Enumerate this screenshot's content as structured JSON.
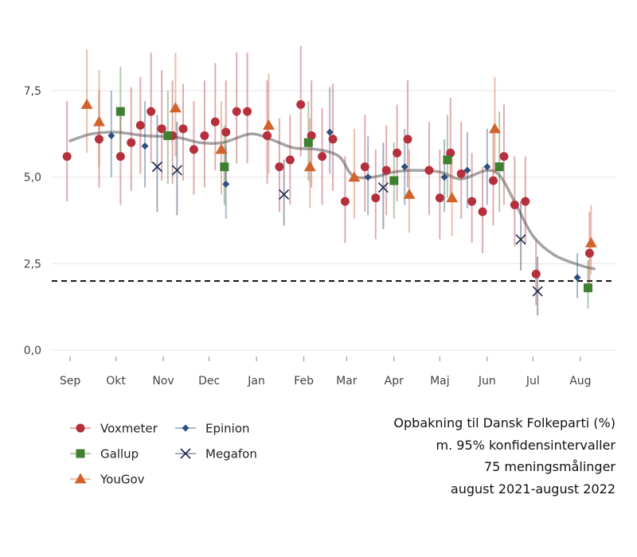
{
  "caption": {
    "line1": "Opbakning til Dansk Folkeparti (%)",
    "line2": "m. 95% konfidensintervaller",
    "line3": "75 meningsmålinger",
    "line4": "august 2021-august 2022"
  },
  "chart_data": {
    "type": "scatter",
    "x_axis": {
      "type": "date",
      "range": [
        "2021-08-20",
        "2022-08-24"
      ],
      "ticks": [
        {
          "date": "2021-09-01",
          "label": "Sep"
        },
        {
          "date": "2021-10-01",
          "label": "Okt"
        },
        {
          "date": "2021-11-01",
          "label": "Nov"
        },
        {
          "date": "2021-12-01",
          "label": "Dec"
        },
        {
          "date": "2022-01-01",
          "label": "Jan"
        },
        {
          "date": "2022-02-01",
          "label": "Feb"
        },
        {
          "date": "2022-03-01",
          "label": "Mar"
        },
        {
          "date": "2022-04-01",
          "label": "Apr"
        },
        {
          "date": "2022-05-01",
          "label": "Maj"
        },
        {
          "date": "2022-06-01",
          "label": "Jun"
        },
        {
          "date": "2022-07-01",
          "label": "Jul"
        },
        {
          "date": "2022-08-01",
          "label": "Aug"
        }
      ]
    },
    "y_axis": {
      "range": [
        0,
        7.8
      ],
      "ticks": [
        {
          "value": 0,
          "label": "0,0"
        },
        {
          "value": 2.5,
          "label": "2,5"
        },
        {
          "value": 5,
          "label": "5,0"
        },
        {
          "value": 7.5,
          "label": "7,5"
        }
      ],
      "grid": true
    },
    "threshold": 2,
    "legend_position": "bottom-left",
    "series": [
      {
        "name": "Voxmeter",
        "color": "#b5303c",
        "marker": "circle",
        "points": [
          {
            "date": "2021-08-30",
            "value": 5.6,
            "lo": 4.3,
            "hi": 7.2
          },
          {
            "date": "2021-09-20",
            "value": 6.1,
            "lo": 4.7,
            "hi": 7.5
          },
          {
            "date": "2021-10-04",
            "value": 5.6,
            "lo": 4.2,
            "hi": 7.0
          },
          {
            "date": "2021-10-11",
            "value": 6.0,
            "lo": 4.6,
            "hi": 7.6
          },
          {
            "date": "2021-10-17",
            "value": 6.5,
            "lo": 5.1,
            "hi": 7.9
          },
          {
            "date": "2021-10-24",
            "value": 6.9,
            "lo": 5.4,
            "hi": 8.6
          },
          {
            "date": "2021-10-31",
            "value": 6.4,
            "lo": 4.9,
            "hi": 8.1
          },
          {
            "date": "2021-11-07",
            "value": 6.2,
            "lo": 4.8,
            "hi": 7.8
          },
          {
            "date": "2021-11-14",
            "value": 6.4,
            "lo": 4.9,
            "hi": 7.7
          },
          {
            "date": "2021-11-21",
            "value": 5.8,
            "lo": 4.5,
            "hi": 7.2
          },
          {
            "date": "2021-11-28",
            "value": 6.2,
            "lo": 4.7,
            "hi": 7.8
          },
          {
            "date": "2021-12-05",
            "value": 6.6,
            "lo": 5.2,
            "hi": 8.3
          },
          {
            "date": "2021-12-12",
            "value": 6.3,
            "lo": 4.9,
            "hi": 7.8
          },
          {
            "date": "2021-12-19",
            "value": 6.9,
            "lo": 5.4,
            "hi": 8.6
          },
          {
            "date": "2021-12-26",
            "value": 6.9,
            "lo": 5.4,
            "hi": 8.6
          },
          {
            "date": "2022-01-08",
            "value": 6.2,
            "lo": 4.8,
            "hi": 7.8
          },
          {
            "date": "2022-01-16",
            "value": 5.3,
            "lo": 4.0,
            "hi": 6.7
          },
          {
            "date": "2022-01-23",
            "value": 5.5,
            "lo": 4.2,
            "hi": 6.8
          },
          {
            "date": "2022-01-30",
            "value": 7.1,
            "lo": 5.6,
            "hi": 8.8
          },
          {
            "date": "2022-02-06",
            "value": 6.2,
            "lo": 4.7,
            "hi": 7.8
          },
          {
            "date": "2022-02-13",
            "value": 5.6,
            "lo": 4.2,
            "hi": 7.0
          },
          {
            "date": "2022-02-20",
            "value": 6.1,
            "lo": 4.6,
            "hi": 7.7
          },
          {
            "date": "2022-02-28",
            "value": 4.3,
            "lo": 3.1,
            "hi": 5.6
          },
          {
            "date": "2022-03-13",
            "value": 5.3,
            "lo": 4.0,
            "hi": 6.8
          },
          {
            "date": "2022-03-20",
            "value": 4.4,
            "lo": 3.2,
            "hi": 5.8
          },
          {
            "date": "2022-03-27",
            "value": 5.2,
            "lo": 3.9,
            "hi": 6.5
          },
          {
            "date": "2022-04-03",
            "value": 5.7,
            "lo": 4.3,
            "hi": 7.1
          },
          {
            "date": "2022-04-10",
            "value": 6.1,
            "lo": 4.7,
            "hi": 7.8
          },
          {
            "date": "2022-04-24",
            "value": 5.2,
            "lo": 3.9,
            "hi": 6.6
          },
          {
            "date": "2022-05-01",
            "value": 4.4,
            "lo": 3.2,
            "hi": 5.8
          },
          {
            "date": "2022-05-08",
            "value": 5.7,
            "lo": 4.3,
            "hi": 7.3
          },
          {
            "date": "2022-05-15",
            "value": 5.1,
            "lo": 3.8,
            "hi": 6.6
          },
          {
            "date": "2022-05-22",
            "value": 4.3,
            "lo": 3.1,
            "hi": 5.7
          },
          {
            "date": "2022-05-29",
            "value": 4.0,
            "lo": 2.8,
            "hi": 5.3
          },
          {
            "date": "2022-06-05",
            "value": 4.9,
            "lo": 3.6,
            "hi": 6.3
          },
          {
            "date": "2022-06-12",
            "value": 5.6,
            "lo": 4.2,
            "hi": 7.1
          },
          {
            "date": "2022-06-19",
            "value": 4.2,
            "lo": 3.0,
            "hi": 5.6
          },
          {
            "date": "2022-06-26",
            "value": 4.3,
            "lo": 3.1,
            "hi": 5.6
          },
          {
            "date": "2022-07-03",
            "value": 2.2,
            "lo": 1.3,
            "hi": 3.2
          },
          {
            "date": "2022-08-07",
            "value": 2.8,
            "lo": 1.8,
            "hi": 4.0
          }
        ]
      },
      {
        "name": "Gallup",
        "color": "#3f7f32",
        "marker": "square",
        "points": [
          {
            "date": "2021-10-04",
            "value": 6.9,
            "lo": 5.5,
            "hi": 8.2
          },
          {
            "date": "2021-11-04",
            "value": 6.2,
            "lo": 4.8,
            "hi": 7.5
          },
          {
            "date": "2021-12-11",
            "value": 5.3,
            "lo": 4.2,
            "hi": 6.5
          },
          {
            "date": "2022-02-04",
            "value": 6.0,
            "lo": 4.9,
            "hi": 7.2
          },
          {
            "date": "2022-04-01",
            "value": 4.9,
            "lo": 3.8,
            "hi": 6.0
          },
          {
            "date": "2022-05-06",
            "value": 5.5,
            "lo": 4.4,
            "hi": 6.8
          },
          {
            "date": "2022-06-09",
            "value": 5.3,
            "lo": 4.0,
            "hi": 6.9
          },
          {
            "date": "2022-08-06",
            "value": 1.8,
            "lo": 1.2,
            "hi": 2.6
          }
        ]
      },
      {
        "name": "YouGov",
        "color": "#d2622a",
        "marker": "triangle",
        "points": [
          {
            "date": "2021-09-12",
            "value": 7.1,
            "lo": 5.7,
            "hi": 8.7
          },
          {
            "date": "2021-09-20",
            "value": 6.6,
            "lo": 5.3,
            "hi": 8.1
          },
          {
            "date": "2021-11-09",
            "value": 7.0,
            "lo": 5.6,
            "hi": 8.6
          },
          {
            "date": "2021-12-09",
            "value": 5.8,
            "lo": 4.5,
            "hi": 7.2
          },
          {
            "date": "2022-01-09",
            "value": 6.5,
            "lo": 5.1,
            "hi": 8.0
          },
          {
            "date": "2022-02-05",
            "value": 5.3,
            "lo": 4.1,
            "hi": 6.7
          },
          {
            "date": "2022-03-06",
            "value": 5.0,
            "lo": 3.8,
            "hi": 6.4
          },
          {
            "date": "2022-04-11",
            "value": 4.5,
            "lo": 3.4,
            "hi": 5.8
          },
          {
            "date": "2022-05-09",
            "value": 4.4,
            "lo": 3.3,
            "hi": 5.7
          },
          {
            "date": "2022-06-06",
            "value": 6.4,
            "lo": 5.1,
            "hi": 7.9
          },
          {
            "date": "2022-08-08",
            "value": 3.1,
            "lo": 2.2,
            "hi": 4.2
          }
        ]
      },
      {
        "name": "Epinion",
        "color": "#2c4f80",
        "marker": "diamond",
        "points": [
          {
            "date": "2021-09-28",
            "value": 6.2,
            "lo": 5.0,
            "hi": 7.5
          },
          {
            "date": "2021-10-20",
            "value": 5.9,
            "lo": 4.7,
            "hi": 7.2
          },
          {
            "date": "2021-12-12",
            "value": 4.8,
            "lo": 3.8,
            "hi": 5.9
          },
          {
            "date": "2022-02-18",
            "value": 6.3,
            "lo": 5.1,
            "hi": 7.6
          },
          {
            "date": "2022-03-15",
            "value": 5.0,
            "lo": 3.9,
            "hi": 6.2
          },
          {
            "date": "2022-04-08",
            "value": 5.3,
            "lo": 4.2,
            "hi": 6.4
          },
          {
            "date": "2022-05-04",
            "value": 5.0,
            "lo": 4.0,
            "hi": 6.1
          },
          {
            "date": "2022-05-19",
            "value": 5.2,
            "lo": 4.1,
            "hi": 6.3
          },
          {
            "date": "2022-06-01",
            "value": 5.3,
            "lo": 4.2,
            "hi": 6.4
          },
          {
            "date": "2022-07-30",
            "value": 2.1,
            "lo": 1.5,
            "hi": 2.8
          }
        ]
      },
      {
        "name": "Megafon",
        "color": "#1e2a4a",
        "marker": "cross",
        "points": [
          {
            "date": "2021-10-28",
            "value": 5.3,
            "lo": 4.0,
            "hi": 6.8
          },
          {
            "date": "2021-11-10",
            "value": 5.2,
            "lo": 3.9,
            "hi": 6.6
          },
          {
            "date": "2022-01-19",
            "value": 4.5,
            "lo": 3.6,
            "hi": 5.5
          },
          {
            "date": "2022-03-25",
            "value": 4.7,
            "lo": 3.5,
            "hi": 6.0
          },
          {
            "date": "2022-06-23",
            "value": 3.2,
            "lo": 2.3,
            "hi": 4.3
          },
          {
            "date": "2022-07-04",
            "value": 1.7,
            "lo": 1.0,
            "hi": 2.7
          }
        ]
      }
    ],
    "trend": {
      "color": "#9a9a9a",
      "points": [
        {
          "date": "2021-09-01",
          "value": 6.05
        },
        {
          "date": "2021-09-15",
          "value": 6.25
        },
        {
          "date": "2021-10-01",
          "value": 6.3
        },
        {
          "date": "2021-10-20",
          "value": 6.2
        },
        {
          "date": "2021-11-10",
          "value": 6.15
        },
        {
          "date": "2021-11-25",
          "value": 6.0
        },
        {
          "date": "2021-12-10",
          "value": 6.0
        },
        {
          "date": "2021-12-28",
          "value": 6.25
        },
        {
          "date": "2022-01-10",
          "value": 6.1
        },
        {
          "date": "2022-01-25",
          "value": 5.85
        },
        {
          "date": "2022-02-10",
          "value": 5.8
        },
        {
          "date": "2022-02-24",
          "value": 5.6
        },
        {
          "date": "2022-03-05",
          "value": 5.05
        },
        {
          "date": "2022-03-18",
          "value": 5.0
        },
        {
          "date": "2022-04-01",
          "value": 5.15
        },
        {
          "date": "2022-04-15",
          "value": 5.2
        },
        {
          "date": "2022-05-01",
          "value": 5.15
        },
        {
          "date": "2022-05-15",
          "value": 4.95
        },
        {
          "date": "2022-06-01",
          "value": 5.2
        },
        {
          "date": "2022-06-10",
          "value": 5.0
        },
        {
          "date": "2022-06-20",
          "value": 4.2
        },
        {
          "date": "2022-07-01",
          "value": 3.3
        },
        {
          "date": "2022-07-15",
          "value": 2.75
        },
        {
          "date": "2022-08-01",
          "value": 2.45
        },
        {
          "date": "2022-08-10",
          "value": 2.35
        }
      ]
    }
  }
}
